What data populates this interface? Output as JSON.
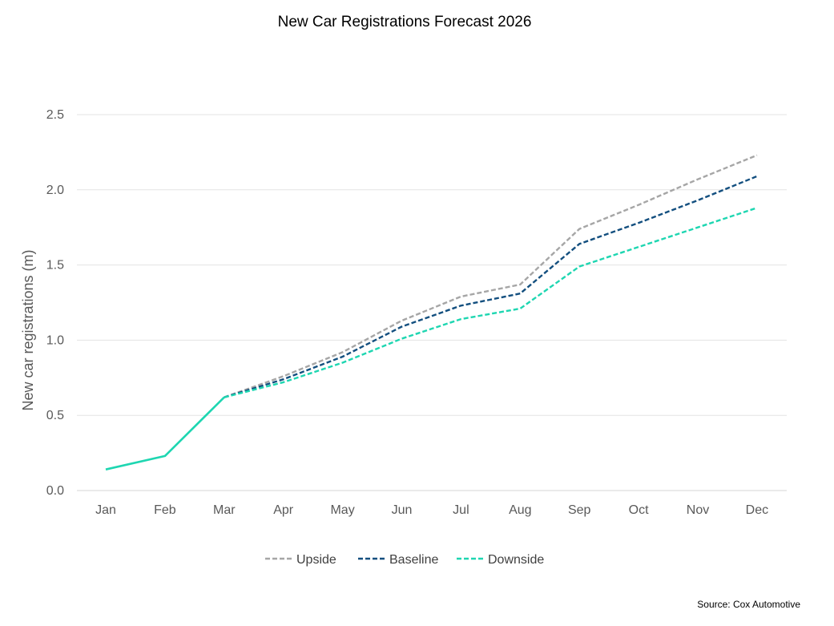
{
  "chart_data": {
    "type": "line",
    "title": "New Car Registrations Forecast 2026",
    "ylabel": "New car registrations (m)",
    "xlabel": "",
    "source": "Source: Cox Automotive",
    "categories": [
      "Jan",
      "Feb",
      "Mar",
      "Apr",
      "May",
      "Jun",
      "Jul",
      "Aug",
      "Sep",
      "Oct",
      "Nov",
      "Dec"
    ],
    "ylim": [
      0,
      2.5
    ],
    "yticks": [
      "0.0",
      "0.5",
      "1.0",
      "1.5",
      "2.0",
      "2.5"
    ],
    "grid": true,
    "legend_position": "bottom",
    "series": [
      {
        "name": "Upside",
        "style": "dashed",
        "color": "#a6a6a6",
        "values": [
          null,
          null,
          0.62,
          0.76,
          0.92,
          1.13,
          1.29,
          1.37,
          1.74,
          1.9,
          2.07,
          2.23
        ]
      },
      {
        "name": "Baseline",
        "style": "dashed",
        "color": "#134f7f",
        "values": [
          null,
          null,
          0.62,
          0.74,
          0.89,
          1.09,
          1.23,
          1.31,
          1.64,
          1.78,
          1.93,
          2.09
        ]
      },
      {
        "name": "Downside",
        "style": "dashed",
        "color": "#1ed6b1",
        "values": [
          null,
          null,
          0.62,
          0.72,
          0.85,
          1.01,
          1.14,
          1.21,
          1.49,
          1.62,
          1.75,
          1.88
        ]
      },
      {
        "name": "",
        "style": "solid",
        "color": "#1ed6b1",
        "values": [
          0.14,
          0.23,
          0.62,
          null,
          null,
          null,
          null,
          null,
          null,
          null,
          null,
          null
        ]
      }
    ]
  }
}
